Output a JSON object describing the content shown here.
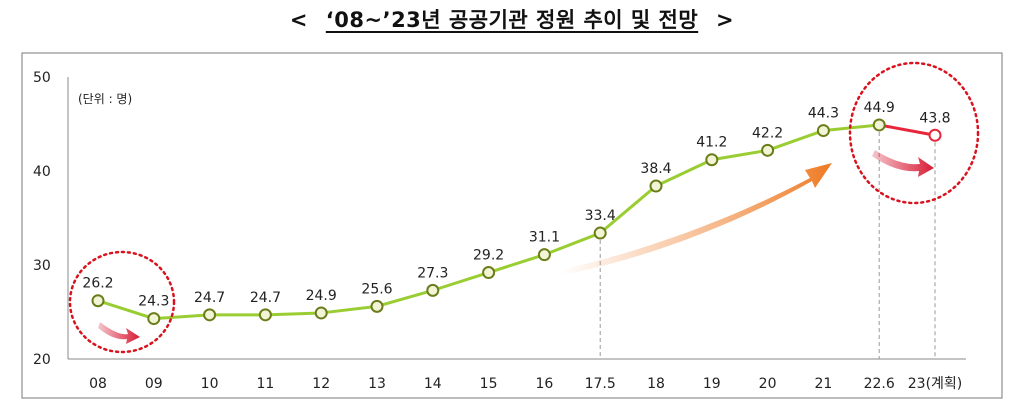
{
  "title": {
    "open": "<",
    "text": "‘08~’23년 공공기관 정원 추이 및 전망",
    "close": ">"
  },
  "unit_label": "(단위 : 명)",
  "colors": {
    "line_actual": "#9acd32",
    "line_plan": "#e8263b",
    "marker_fill": "#f2f5d5",
    "marker_stroke": "#6b7d1a",
    "circle_highlight": "#d9131e",
    "arrow_growth": "#ee7b25",
    "arrow_decline": "#d81b35",
    "axis": "#888888",
    "frame": "#7a7a7a"
  },
  "chart_data": {
    "type": "line",
    "title": "‘08~’23년 공공기관 정원 추이 및 전망",
    "categories": [
      "08",
      "09",
      "10",
      "11",
      "12",
      "13",
      "14",
      "15",
      "16",
      "17.5",
      "18",
      "19",
      "20",
      "21",
      "22.6",
      "23(계획)"
    ],
    "values": [
      26.2,
      24.3,
      24.7,
      24.7,
      24.9,
      25.6,
      27.3,
      29.2,
      31.1,
      33.4,
      38.4,
      41.2,
      42.2,
      44.3,
      44.9,
      43.8
    ],
    "data_labels": [
      "26.2",
      "24.3",
      "24.7",
      "24.7",
      "24.9",
      "25.6",
      "27.3",
      "29.2",
      "31.1",
      "33.4",
      "38.4",
      "41.2",
      "42.2",
      "44.3",
      "44.9",
      "43.8"
    ],
    "planned_index": 15,
    "ylim": [
      20,
      50
    ],
    "yticks": [
      20,
      30,
      40,
      50
    ],
    "xlabel": "",
    "ylabel": "",
    "unit": "(단위 : 명)",
    "grid": false,
    "guide_lines_at": [
      "17.5",
      "22.6",
      "23(계획)"
    ],
    "highlight_circles": [
      "08-09",
      "22.6-23(계획)"
    ]
  }
}
